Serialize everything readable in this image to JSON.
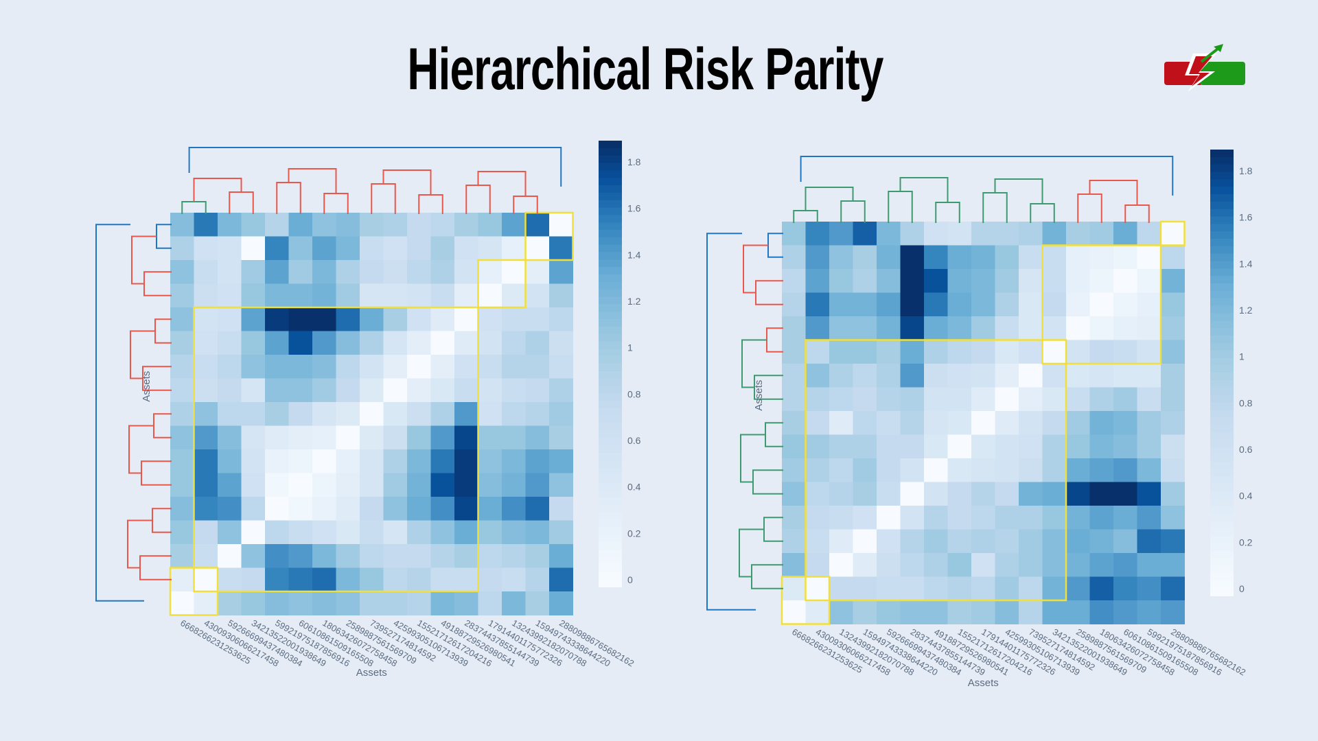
{
  "title": "Hierarchical Risk Parity",
  "colors": {
    "background": "#e6ecf5",
    "cluster_red": "#e8574a",
    "cluster_blue": "#1f77c4",
    "cluster_green": "#3d9970",
    "highlight": "#f2df3a",
    "scale_low": "#f7fbff",
    "scale_high": "#08306b"
  },
  "logo_icon": "lightning-arrow-logo",
  "chart_data": [
    {
      "type": "heatmap",
      "title": "",
      "xlabel": "Assets",
      "ylabel": "Assets",
      "zlim": [
        0,
        1.85
      ],
      "colorbar_ticks": [
        "0",
        "0.2",
        "0.4",
        "0.6",
        "0.8",
        "1",
        "1.2",
        "1.4",
        "1.6",
        "1.8"
      ],
      "labels": [
        "6668266231253625",
        "4300930606621745​8",
        "5926669943748038​4",
        "3421352200193864​9",
        "5992197518785691​6",
        "6061086150916550​8",
        "1806342607275845​8",
        "2589887561569709",
        "7395271748145​92",
        "4259930510671393​9",
        "1552171261720421​6",
        "4918872952698054​1",
        "2837443785514473​9",
        "1791440117577232​6",
        "1324399218207078​8",
        "1594974333864422​0",
        "2880988676568216​2"
      ],
      "clusters_highlighted": "yellow outline",
      "dendrogram_colors": [
        "green",
        "red",
        "blue"
      ],
      "values": [
        [
          1.15,
          1.55,
          1.2,
          1.05,
          0.85,
          1.3,
          1.1,
          1.15,
          0.95,
          0.9,
          0.75,
          0.8,
          0.95,
          1.05,
          1.35,
          1.6,
          0.0
        ],
        [
          0.9,
          0.6,
          0.55,
          0.0,
          1.5,
          1.1,
          1.35,
          1.2,
          0.7,
          0.6,
          0.75,
          0.95,
          0.6,
          0.5,
          0.25,
          0.0,
          1.55
        ],
        [
          1.1,
          0.7,
          0.55,
          1.0,
          1.35,
          1.0,
          1.2,
          0.9,
          0.75,
          0.65,
          0.8,
          0.9,
          0.55,
          0.25,
          0.0,
          0.3,
          1.35
        ],
        [
          1.0,
          0.65,
          0.6,
          1.05,
          1.2,
          1.2,
          1.25,
          1.0,
          0.5,
          0.5,
          0.55,
          0.7,
          0.3,
          0.0,
          0.4,
          0.55,
          0.95
        ],
        [
          1.1,
          0.55,
          0.6,
          1.35,
          1.8,
          1.85,
          1.85,
          1.6,
          1.3,
          0.95,
          0.6,
          0.35,
          0.0,
          0.6,
          0.7,
          0.7,
          0.8
        ],
        [
          0.95,
          0.6,
          0.7,
          1.05,
          1.35,
          1.7,
          1.4,
          1.15,
          0.9,
          0.5,
          0.3,
          0.0,
          0.35,
          0.55,
          0.8,
          0.9,
          0.65
        ],
        [
          0.85,
          0.7,
          0.8,
          1.1,
          1.2,
          1.2,
          1.15,
          0.8,
          0.55,
          0.3,
          0.0,
          0.3,
          0.6,
          0.7,
          0.85,
          0.85,
          0.7
        ],
        [
          0.8,
          0.65,
          0.75,
          0.5,
          1.1,
          1.1,
          1.0,
          0.75,
          0.4,
          0.0,
          0.3,
          0.45,
          0.7,
          0.55,
          0.7,
          0.75,
          0.9
        ],
        [
          0.9,
          1.1,
          0.8,
          0.8,
          0.95,
          0.75,
          0.5,
          0.4,
          0.0,
          0.45,
          0.65,
          0.9,
          1.4,
          0.6,
          0.8,
          0.85,
          1.0
        ],
        [
          1.1,
          1.4,
          1.15,
          0.5,
          0.35,
          0.3,
          0.25,
          0.0,
          0.4,
          0.65,
          1.05,
          1.4,
          1.75,
          1.05,
          1.05,
          1.15,
          0.95
        ],
        [
          1.05,
          1.55,
          1.2,
          0.55,
          0.2,
          0.15,
          0.0,
          0.25,
          0.5,
          0.9,
          1.2,
          1.55,
          1.8,
          1.1,
          1.2,
          1.35,
          1.3
        ],
        [
          1.05,
          1.55,
          1.35,
          0.6,
          0.1,
          0.0,
          0.15,
          0.3,
          0.5,
          1.0,
          1.25,
          1.7,
          1.8,
          1.15,
          1.25,
          1.4,
          1.1
        ],
        [
          1.15,
          1.5,
          1.45,
          0.8,
          0.0,
          0.1,
          0.2,
          0.35,
          0.75,
          1.1,
          1.3,
          1.45,
          1.75,
          1.3,
          1.45,
          1.6,
          0.75
        ],
        [
          1.05,
          0.75,
          1.1,
          0.0,
          0.8,
          0.7,
          0.6,
          0.45,
          0.7,
          0.5,
          0.9,
          1.1,
          1.3,
          1.05,
          1.15,
          1.2,
          1.0
        ],
        [
          0.95,
          0.7,
          0.0,
          1.1,
          1.45,
          1.4,
          1.2,
          1.0,
          0.8,
          0.75,
          0.75,
          0.85,
          0.95,
          0.8,
          0.85,
          0.95,
          1.3
        ],
        [
          0.3,
          0.0,
          0.7,
          0.75,
          1.5,
          1.55,
          1.6,
          1.2,
          1.05,
          0.8,
          0.85,
          0.7,
          0.7,
          0.75,
          0.7,
          0.85,
          1.6
        ],
        [
          0.0,
          0.3,
          0.95,
          1.05,
          1.15,
          1.1,
          1.15,
          1.1,
          0.9,
          0.9,
          0.85,
          1.2,
          1.15,
          0.8,
          1.2,
          0.95,
          1.3
        ]
      ]
    },
    {
      "type": "heatmap",
      "title": "",
      "xlabel": "Assets",
      "ylabel": "Assets",
      "zlim": [
        0,
        1.85
      ],
      "colorbar_ticks": [
        "0",
        "0.2",
        "0.4",
        "0.6",
        "0.8",
        "1",
        "1.2",
        "1.4",
        "1.6",
        "1.8"
      ],
      "labels": [
        "6668266231253625",
        "4300930606621745​8",
        "1324399218207078​8",
        "1594974333864422​0",
        "5926669943748038​4",
        "2837443785514473​9",
        "4918872952698054​1",
        "1552171261720421​6",
        "1791440117577232​6",
        "4259930510671393​9",
        "7395271748145​92",
        "3421352200193864​9",
        "2589887561569709",
        "1806342607275845​8",
        "6061086150916550​8",
        "5992197518785691​6",
        "2880988676568216​2"
      ],
      "clusters_highlighted": "yellow outline",
      "dendrogram_colors": [
        "green",
        "red",
        "blue"
      ],
      "values": [
        [
          1.05,
          1.5,
          1.4,
          1.65,
          1.2,
          0.9,
          0.6,
          0.55,
          0.85,
          0.85,
          0.9,
          1.25,
          0.95,
          1.0,
          1.3,
          0.8,
          0.0
        ],
        [
          0.9,
          1.4,
          1.1,
          0.95,
          1.25,
          1.85,
          1.5,
          1.3,
          1.25,
          1.05,
          0.7,
          0.7,
          0.25,
          0.2,
          0.15,
          0.0,
          0.8
        ],
        [
          0.8,
          1.35,
          1.05,
          0.9,
          1.15,
          1.85,
          1.7,
          1.25,
          1.2,
          1.0,
          0.5,
          0.7,
          0.25,
          0.15,
          0.0,
          0.15,
          1.25
        ],
        [
          0.85,
          1.55,
          1.25,
          1.25,
          1.35,
          1.85,
          1.55,
          1.3,
          1.2,
          0.9,
          0.45,
          0.75,
          0.2,
          0.0,
          0.15,
          0.25,
          1.05
        ],
        [
          0.95,
          1.4,
          1.1,
          1.1,
          1.25,
          1.75,
          1.3,
          1.2,
          1.0,
          0.7,
          0.45,
          0.55,
          0.0,
          0.15,
          0.25,
          0.3,
          1.0
        ],
        [
          0.95,
          0.8,
          1.05,
          1.05,
          0.95,
          1.3,
          0.9,
          0.8,
          0.75,
          0.45,
          0.6,
          0.0,
          0.55,
          0.75,
          0.7,
          0.55,
          1.1
        ],
        [
          0.85,
          1.1,
          0.9,
          0.8,
          0.9,
          1.4,
          0.65,
          0.6,
          0.55,
          0.3,
          0.0,
          0.6,
          0.45,
          0.5,
          0.45,
          0.45,
          0.95
        ],
        [
          0.85,
          0.85,
          0.8,
          0.75,
          0.85,
          0.9,
          0.55,
          0.55,
          0.35,
          0.0,
          0.3,
          0.45,
          0.7,
          0.9,
          1.0,
          0.7,
          0.95
        ],
        [
          0.95,
          0.75,
          0.35,
          0.8,
          0.7,
          0.85,
          0.5,
          0.45,
          0.0,
          0.35,
          0.55,
          0.75,
          1.0,
          1.25,
          1.2,
          1.0,
          0.9
        ],
        [
          1.05,
          1.0,
          0.9,
          0.9,
          0.75,
          0.75,
          0.45,
          0.0,
          0.45,
          0.55,
          0.6,
          0.9,
          1.05,
          1.2,
          1.15,
          1.0,
          0.65
        ],
        [
          1.0,
          0.9,
          0.8,
          1.0,
          0.75,
          0.55,
          0.0,
          0.45,
          0.5,
          0.55,
          0.65,
          0.9,
          1.3,
          1.35,
          1.4,
          1.2,
          0.7
        ],
        [
          1.1,
          0.8,
          0.85,
          0.95,
          0.7,
          0.0,
          0.55,
          0.75,
          0.85,
          0.75,
          1.25,
          1.3,
          1.75,
          1.85,
          1.85,
          1.7,
          1.0
        ],
        [
          0.95,
          0.75,
          0.7,
          0.6,
          0.0,
          0.55,
          0.85,
          0.75,
          0.8,
          0.9,
          0.9,
          1.05,
          1.25,
          1.35,
          1.3,
          1.4,
          1.1
        ],
        [
          0.9,
          0.7,
          0.35,
          0.0,
          0.6,
          0.85,
          1.0,
          0.85,
          0.9,
          0.85,
          1.0,
          1.15,
          1.3,
          1.25,
          1.15,
          1.6,
          1.55
        ],
        [
          1.15,
          0.75,
          0.0,
          0.35,
          0.65,
          0.8,
          0.9,
          1.05,
          0.6,
          0.9,
          1.0,
          1.15,
          1.25,
          1.35,
          1.4,
          1.3,
          1.3
        ],
        [
          0.4,
          0.0,
          0.75,
          0.75,
          0.7,
          0.7,
          0.8,
          0.85,
          0.8,
          1.0,
          0.8,
          1.25,
          1.4,
          1.65,
          1.5,
          1.45,
          1.6
        ],
        [
          0.0,
          0.35,
          1.1,
          0.95,
          1.05,
          1.1,
          1.1,
          0.95,
          1.0,
          1.15,
          0.85,
          1.3,
          1.3,
          1.45,
          1.4,
          1.35,
          1.4
        ]
      ]
    }
  ]
}
